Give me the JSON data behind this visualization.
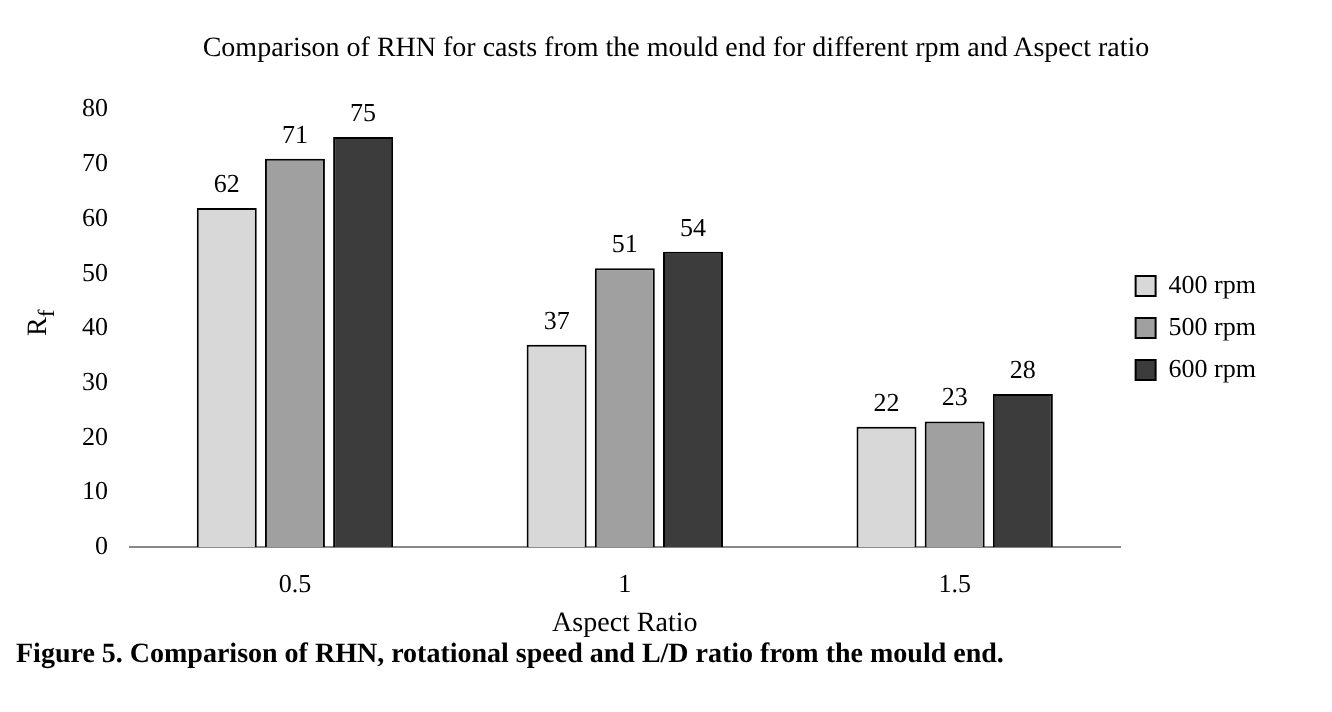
{
  "chart_data": {
    "type": "bar",
    "title": "Comparison of RHN for casts from the mould end for different rpm and Aspect ratio",
    "xlabel": "Aspect Ratio",
    "ylabel": "R$_{f}$",
    "categories": [
      "0.5",
      "1",
      "1.5"
    ],
    "series": [
      {
        "name": "400 rpm",
        "color": "#d8d8d8",
        "values": [
          62,
          37,
          22
        ]
      },
      {
        "name": "500 rpm",
        "color": "#a0a0a0",
        "values": [
          71,
          51,
          23
        ]
      },
      {
        "name": "600 rpm",
        "color": "#3c3c3c",
        "values": [
          75,
          54,
          28
        ]
      }
    ],
    "ylim": [
      0,
      80
    ],
    "yticks": [
      0,
      10,
      20,
      30,
      40,
      50,
      60,
      70,
      80
    ],
    "grid": false,
    "legend": "right",
    "data_labels": true,
    "annotations": [
      "Figure 5. Comparison of RHN, rotational speed and L/D ratio from the mould end."
    ]
  }
}
